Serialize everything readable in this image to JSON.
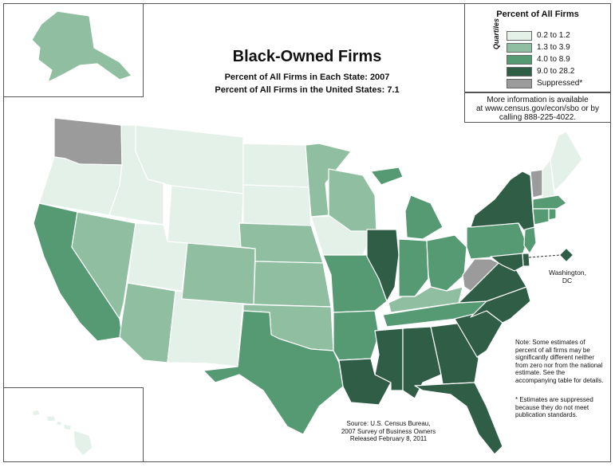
{
  "title": "Black-Owned Firms",
  "subtitle_1": "Percent of All Firms in Each State: 2007",
  "subtitle_2": "Percent of All Firms in the United States: 7.1",
  "legend": {
    "title": "Percent of All Firms",
    "axis_label": "Quartiles",
    "items": [
      {
        "label": "0.2 to 1.2",
        "color": "#e3f1e8",
        "class": "q1"
      },
      {
        "label": "1.3 to 3.9",
        "color": "#8fbfa0",
        "class": "q2"
      },
      {
        "label": "4.0 to 8.9",
        "color": "#559a73",
        "class": "q3"
      },
      {
        "label": "9.0 to 28.2",
        "color": "#2f5d46",
        "class": "q4"
      },
      {
        "label": "Suppressed*",
        "color": "#9b9b9b",
        "class": "sup"
      }
    ]
  },
  "info": {
    "line1": "More information is available",
    "line2": "at www.census.gov/econ/sbo or by",
    "line3": "calling 888-225-4022."
  },
  "dc": {
    "line1": "Washington,",
    "line2": "DC",
    "class": "q4"
  },
  "note": "Note: Some estimates of percent of all firms may be significantly different neither from zero nor from the national estimate.  See the accompanying table for details.",
  "suppressed_note": "*  Estimates are suppressed because they do not meet publication standards.",
  "source": {
    "line1": "Source: U.S. Census Bureau,",
    "line2": "2007 Survey of Business Owners",
    "line3": "Released February 8, 2011"
  },
  "states": {
    "WA": "sup",
    "OR": "q1",
    "CA": "q3",
    "NV": "q2",
    "ID": "q1",
    "MT": "q1",
    "WY": "q1",
    "UT": "q1",
    "AZ": "q2",
    "NM": "q1",
    "CO": "q2",
    "ND": "q1",
    "SD": "q1",
    "NE": "q2",
    "KS": "q2",
    "OK": "q2",
    "TX": "q3",
    "MN": "q2",
    "IA": "q1",
    "MO": "q3",
    "AR": "q3",
    "LA": "q4",
    "WI": "q2",
    "IL": "q4",
    "MI": "q3",
    "IN": "q3",
    "OH": "q3",
    "KY": "q2",
    "TN": "q3",
    "MS": "q4",
    "AL": "q4",
    "GA": "q4",
    "FL": "q4",
    "SC": "q4",
    "NC": "q4",
    "VA": "q4",
    "WV": "sup",
    "PA": "q3",
    "NY": "q4",
    "VT": "sup",
    "NH": "q1",
    "ME": "q1",
    "MA": "q3",
    "RI": "q3",
    "CT": "q3",
    "NJ": "q3",
    "DE": "q4",
    "MD": "q4",
    "AK": "q2",
    "HI": "q1"
  }
}
